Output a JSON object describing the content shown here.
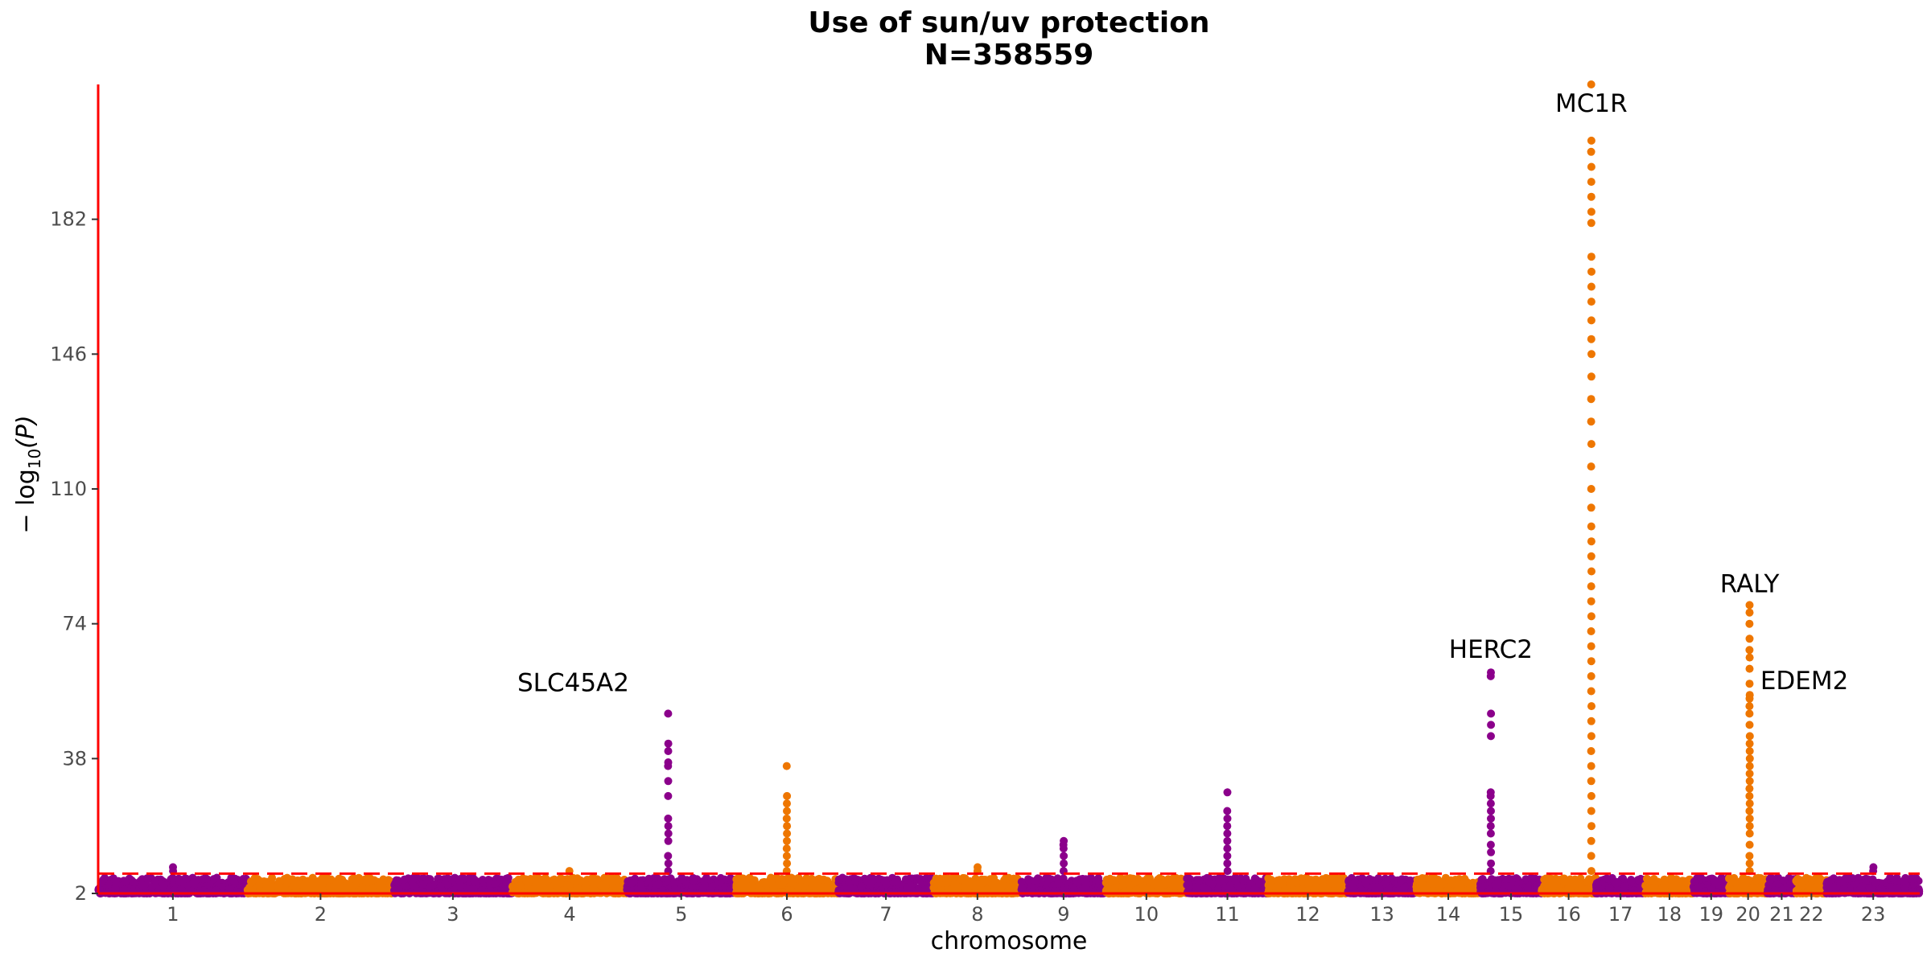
{
  "chart_data": {
    "type": "scatter",
    "subtype": "manhattan",
    "title": "Use of sun/uv protection",
    "subtitle": "N=358559",
    "xlabel": "chromosome",
    "ylabel": "− log",
    "ylabel_sub": "10",
    "ylabel_var": "(P)",
    "ylim": [
      2,
      218
    ],
    "yticks": [
      2,
      38,
      74,
      110,
      146,
      182
    ],
    "significance_threshold": 7.3,
    "grid": false,
    "legend": "none",
    "colors": {
      "odd": "#8B008B",
      "even": "#EE7600",
      "axis": "#FF0000",
      "threshold": "#FF0000"
    },
    "chromosomes": [
      "1",
      "2",
      "3",
      "4",
      "5",
      "6",
      "7",
      "8",
      "9",
      "10",
      "11",
      "12",
      "13",
      "14",
      "15",
      "16",
      "17",
      "18",
      "19",
      "20",
      "21",
      "22",
      "23"
    ],
    "chromosome_lengths": [
      249,
      243,
      198,
      191,
      181,
      171,
      159,
      146,
      141,
      135,
      135,
      133,
      114,
      107,
      102,
      90,
      83,
      80,
      59,
      64,
      48,
      51,
      155
    ],
    "peaks": [
      {
        "gene": "SLC45A2",
        "chrom": "5",
        "max_log10p": 50,
        "points": [
          50,
          42,
          40,
          37,
          36,
          32,
          28,
          22,
          20,
          18,
          16,
          12,
          10,
          8
        ]
      },
      {
        "gene": "",
        "chrom": "6",
        "max_log10p": 36,
        "points": [
          36,
          28,
          26,
          24,
          22,
          20,
          18,
          16,
          14,
          12,
          10,
          8
        ]
      },
      {
        "gene": "",
        "chrom": "9",
        "max_log10p": 16,
        "points": [
          16,
          15,
          14,
          12,
          10,
          8,
          6
        ]
      },
      {
        "gene": "",
        "chrom": "11",
        "max_log10p": 29,
        "points": [
          29,
          24,
          22,
          20,
          18,
          16,
          14,
          12,
          10,
          8
        ]
      },
      {
        "gene": "HERC2",
        "chrom": "15",
        "max_log10p": 61,
        "points": [
          61,
          60,
          50,
          47,
          44,
          29,
          28,
          26,
          24,
          22,
          20,
          18,
          15,
          13,
          10,
          8
        ]
      },
      {
        "gene": "MC1R",
        "chrom": "16",
        "max_log10p": 218,
        "points": [
          218,
          203,
          200,
          196,
          192,
          188,
          184,
          181,
          172,
          168,
          164,
          160,
          155,
          150,
          146,
          140,
          134,
          128,
          122,
          116,
          110,
          105,
          100,
          96,
          92,
          88,
          84,
          80,
          76,
          72,
          68,
          64,
          60,
          56,
          52,
          48,
          44,
          40,
          36,
          32,
          28,
          24,
          20,
          16,
          12,
          8
        ]
      },
      {
        "gene": "RALY",
        "chrom": "20",
        "max_log10p": 79,
        "points": [
          79,
          77,
          74,
          70,
          67,
          65,
          62,
          58,
          55
        ]
      },
      {
        "gene": "EDEM2",
        "chrom": "20",
        "max_log10p": 54,
        "points": [
          54,
          52,
          50,
          47,
          44,
          42,
          40,
          38,
          36,
          34,
          32,
          30,
          28,
          26,
          24,
          22,
          20,
          18,
          15,
          12,
          10,
          8
        ]
      },
      {
        "gene": "",
        "chrom": "1",
        "max_log10p": 9,
        "points": [
          9,
          8
        ]
      },
      {
        "gene": "",
        "chrom": "4",
        "max_log10p": 8,
        "points": [
          8
        ]
      },
      {
        "gene": "",
        "chrom": "8",
        "max_log10p": 9,
        "points": [
          9,
          8
        ]
      },
      {
        "gene": "",
        "chrom": "23",
        "max_log10p": 9,
        "points": [
          9,
          8
        ]
      }
    ]
  }
}
